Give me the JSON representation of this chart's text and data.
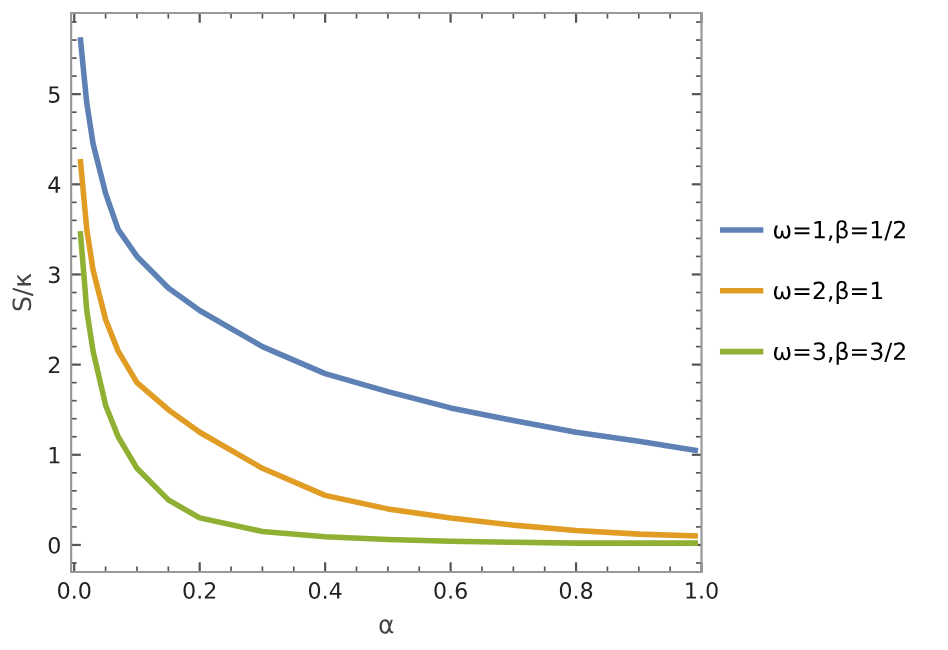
{
  "chart_data": {
    "type": "line",
    "xlabel": "α",
    "ylabel": "S/κ",
    "x": [
      0.01,
      0.02,
      0.03,
      0.05,
      0.07,
      0.1,
      0.15,
      0.2,
      0.3,
      0.4,
      0.5,
      0.6,
      0.7,
      0.8,
      0.9,
      0.99
    ],
    "series": [
      {
        "name": "ω=1,β=1/2",
        "color": "#5e81b5",
        "values": [
          5.6,
          4.9,
          4.45,
          3.9,
          3.5,
          3.2,
          2.85,
          2.6,
          2.2,
          1.9,
          1.7,
          1.52,
          1.38,
          1.25,
          1.15,
          1.05
        ]
      },
      {
        "name": "ω=2,β=1",
        "color": "#e19c24",
        "values": [
          4.25,
          3.5,
          3.05,
          2.5,
          2.15,
          1.8,
          1.5,
          1.25,
          0.85,
          0.55,
          0.4,
          0.3,
          0.22,
          0.16,
          0.12,
          0.1
        ]
      },
      {
        "name": "ω=3,β=3/2",
        "color": "#8fb032",
        "values": [
          3.45,
          2.6,
          2.15,
          1.55,
          1.2,
          0.85,
          0.5,
          0.3,
          0.15,
          0.09,
          0.06,
          0.04,
          0.03,
          0.02,
          0.02,
          0.02
        ]
      }
    ],
    "xlim": [
      -0.005,
      1.0
    ],
    "ylim": [
      -0.3,
      5.9
    ],
    "xticks": [
      {
        "value": 0,
        "label": "0.0"
      },
      0.2,
      0.4,
      0.6,
      0.8,
      {
        "value": 1,
        "label": "1.0"
      }
    ],
    "yticks": [
      0,
      1,
      2,
      3,
      4,
      5
    ],
    "grid": false,
    "legend": "right",
    "marker": "none",
    "line_style": "solid"
  }
}
